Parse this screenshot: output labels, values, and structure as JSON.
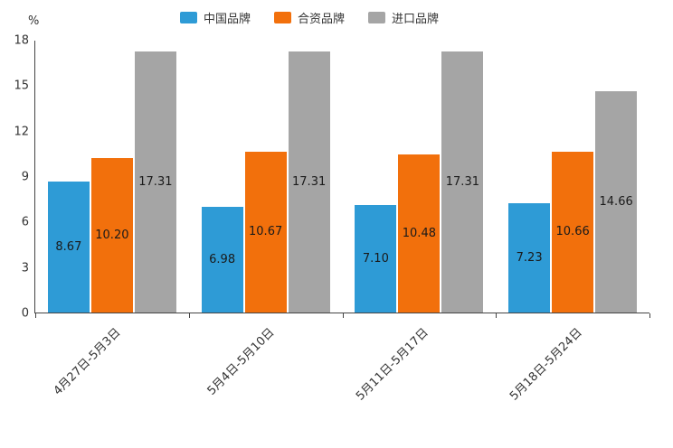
{
  "chart_data": {
    "type": "bar",
    "title": "",
    "categories": [
      "4月27日-5月3日",
      "5月4日-5月10日",
      "5月11日-5月17日",
      "5月18日-5月24日"
    ],
    "series": [
      {
        "name": "中国品牌",
        "color": "#2E9BD6",
        "values": [
          8.67,
          6.98,
          7.1,
          7.23
        ]
      },
      {
        "name": "合资品牌",
        "color": "#F2700C",
        "values": [
          10.2,
          10.67,
          10.48,
          10.66
        ]
      },
      {
        "name": "进口品牌",
        "color": "#A5A5A5",
        "values": [
          17.31,
          17.31,
          17.31,
          14.66
        ]
      }
    ],
    "xlabel": "",
    "ylabel": "%",
    "ylim": [
      0,
      18
    ],
    "yticks": [
      0,
      3,
      6,
      9,
      12,
      15,
      18
    ],
    "grid": false,
    "legend_position": "top",
    "value_label_decimals": 2,
    "axis_color": "#444444",
    "text_color": "#333333"
  }
}
